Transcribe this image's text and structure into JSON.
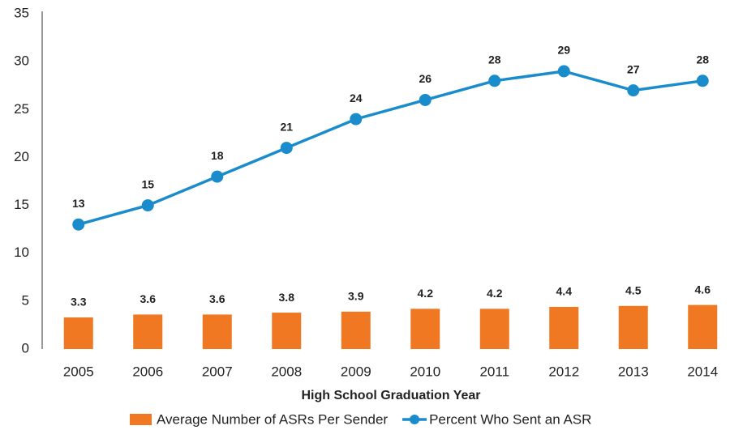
{
  "chart_data": {
    "type": "bar",
    "x_label": "High School Graduation Year",
    "categories": [
      "2005",
      "2006",
      "2007",
      "2008",
      "2009",
      "2010",
      "2011",
      "2012",
      "2013",
      "2014"
    ],
    "series": [
      {
        "name": "Average Number of ASRs Per Sender",
        "type": "bar",
        "color": "#f07822",
        "values": [
          3.3,
          3.6,
          3.6,
          3.8,
          3.9,
          4.2,
          4.2,
          4.4,
          4.5,
          4.6
        ]
      },
      {
        "name": "Percent Who Sent an ASR",
        "type": "line",
        "color": "#1a8ccc",
        "values": [
          13,
          15,
          18,
          21,
          24,
          26,
          28,
          29,
          27,
          28
        ]
      }
    ],
    "ylim": [
      0,
      35
    ],
    "yticks": [
      0,
      5,
      10,
      15,
      20,
      25,
      30,
      35
    ],
    "grid": false,
    "legend": "bottom"
  }
}
